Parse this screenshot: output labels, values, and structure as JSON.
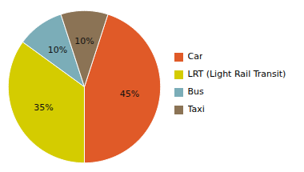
{
  "chart_data": {
    "type": "pie",
    "categories": [
      "Car",
      "LRT (Light Rail Transit)",
      "Bus",
      "Taxi"
    ],
    "values": [
      45,
      35,
      10,
      10
    ],
    "value_labels": [
      "45%",
      "35%",
      "10%",
      "10%"
    ],
    "colors": [
      "#E05A28",
      "#D4CC00",
      "#7BADB8",
      "#8B7355"
    ],
    "data_labels": true,
    "legend": "right"
  }
}
